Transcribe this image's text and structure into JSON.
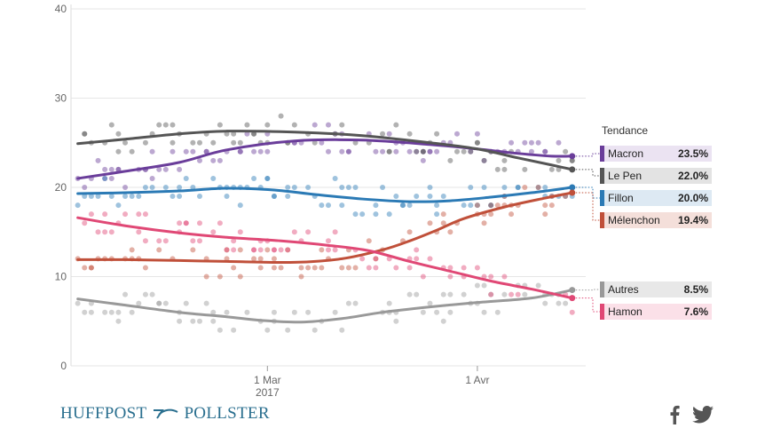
{
  "chart_data": {
    "type": "line",
    "y_ticks": [
      0,
      10,
      20,
      30,
      40
    ],
    "ylim": [
      0,
      40
    ],
    "x_tick_labels": [
      {
        "x": 1,
        "label": "1 Mar",
        "sublabel": "2017"
      },
      {
        "x": 32,
        "label": "1 Avr",
        "sublabel": ""
      }
    ],
    "xlim": [
      -28,
      48
    ],
    "legend_title": "Tendance",
    "series": [
      {
        "name": "Macron",
        "value_label": "23.5%",
        "color": "#6a3d9a",
        "light_color": "#ebe3f2",
        "trend": [
          [
            -27,
            21.0
          ],
          [
            -20,
            21.8
          ],
          [
            -12,
            22.8
          ],
          [
            -5,
            24.2
          ],
          [
            5,
            25.2
          ],
          [
            15,
            25.3
          ],
          [
            25,
            24.8
          ],
          [
            32,
            24.3
          ],
          [
            38,
            23.8
          ],
          [
            43,
            23.5
          ],
          [
            46,
            23.5
          ]
        ]
      },
      {
        "name": "Le Pen",
        "value_label": "22.0%",
        "color": "#555555",
        "light_color": "#e3e3e3",
        "trend": [
          [
            -27,
            24.9
          ],
          [
            -20,
            25.4
          ],
          [
            -12,
            26.0
          ],
          [
            -5,
            26.3
          ],
          [
            5,
            26.2
          ],
          [
            15,
            25.8
          ],
          [
            25,
            25.0
          ],
          [
            32,
            24.3
          ],
          [
            38,
            23.3
          ],
          [
            43,
            22.5
          ],
          [
            46,
            22.0
          ]
        ]
      },
      {
        "name": "Fillon",
        "value_label": "20.0%",
        "color": "#2b7ab5",
        "light_color": "#dde9f3",
        "trend": [
          [
            -27,
            19.3
          ],
          [
            -20,
            19.4
          ],
          [
            -12,
            19.6
          ],
          [
            -5,
            19.9
          ],
          [
            2,
            19.7
          ],
          [
            8,
            19.2
          ],
          [
            15,
            18.7
          ],
          [
            22,
            18.4
          ],
          [
            28,
            18.5
          ],
          [
            34,
            18.9
          ],
          [
            40,
            19.4
          ],
          [
            46,
            20.0
          ]
        ]
      },
      {
        "name": "Mélenchon",
        "value_label": "19.4%",
        "color": "#c0503a",
        "light_color": "#f4dfda",
        "trend": [
          [
            -27,
            11.9
          ],
          [
            -20,
            11.9
          ],
          [
            -12,
            11.8
          ],
          [
            -5,
            11.7
          ],
          [
            5,
            11.6
          ],
          [
            12,
            12.0
          ],
          [
            18,
            13.0
          ],
          [
            22,
            14.0
          ],
          [
            26,
            15.2
          ],
          [
            30,
            16.5
          ],
          [
            36,
            17.8
          ],
          [
            42,
            18.8
          ],
          [
            46,
            19.4
          ]
        ]
      },
      {
        "name": "Autres",
        "value_label": "8.5%",
        "color": "#999999",
        "light_color": "#e8e8e8",
        "trend": [
          [
            -27,
            7.5
          ],
          [
            -20,
            6.8
          ],
          [
            -12,
            6.0
          ],
          [
            -5,
            5.5
          ],
          [
            0,
            5.1
          ],
          [
            6,
            4.9
          ],
          [
            12,
            5.3
          ],
          [
            18,
            6.0
          ],
          [
            25,
            6.6
          ],
          [
            32,
            7.1
          ],
          [
            40,
            7.6
          ],
          [
            46,
            8.5
          ]
        ]
      },
      {
        "name": "Hamon",
        "value_label": "7.6%",
        "color": "#e04875",
        "light_color": "#fbe0e8",
        "trend": [
          [
            -27,
            16.6
          ],
          [
            -20,
            15.7
          ],
          [
            -12,
            14.9
          ],
          [
            -5,
            14.4
          ],
          [
            3,
            14.0
          ],
          [
            10,
            13.5
          ],
          [
            16,
            12.9
          ],
          [
            22,
            11.7
          ],
          [
            28,
            10.6
          ],
          [
            34,
            9.5
          ],
          [
            40,
            8.6
          ],
          [
            46,
            7.6
          ]
        ]
      }
    ]
  },
  "branding": {
    "left": "HUFFPOST",
    "right": "POLLSTER"
  },
  "social": {
    "facebook_icon": "facebook-icon",
    "twitter_icon": "twitter-icon"
  }
}
